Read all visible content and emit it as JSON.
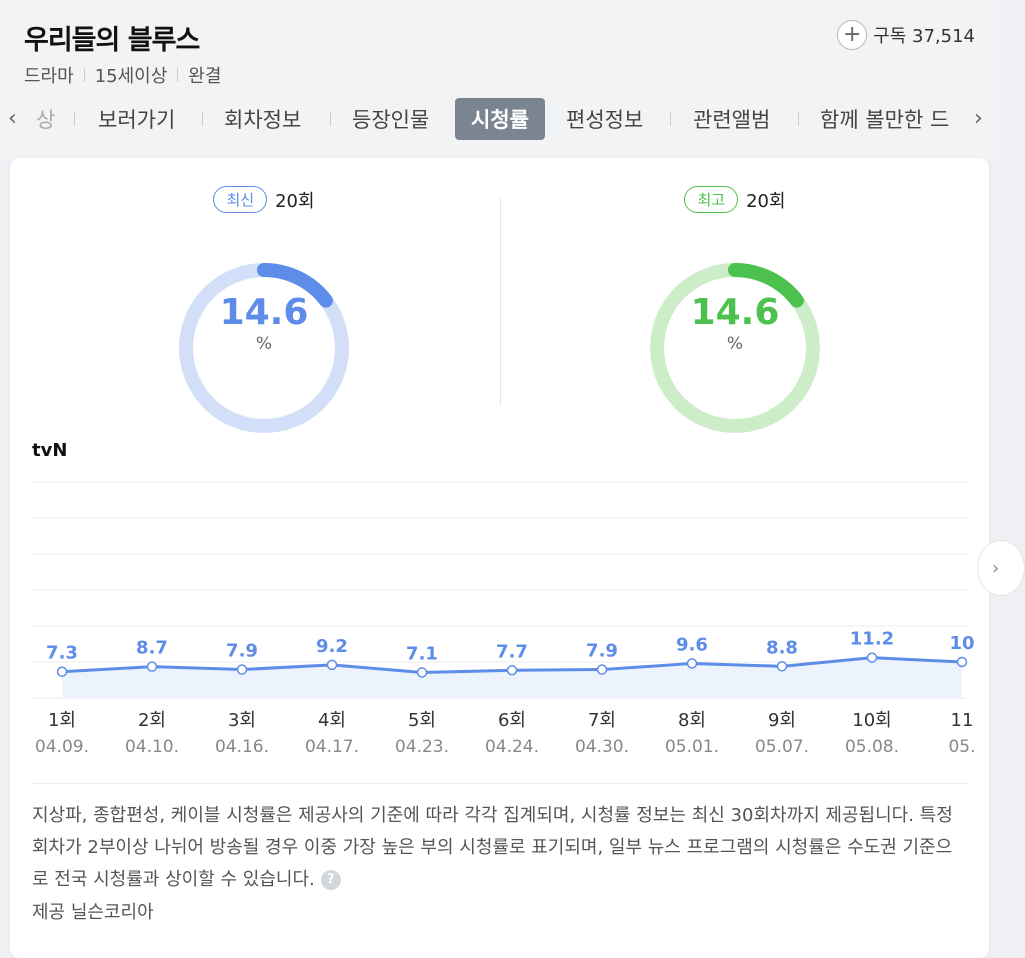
{
  "header": {
    "title": "우리들의 블루스",
    "meta": [
      "드라마",
      "15세이상",
      "완결"
    ],
    "subscribe_label": "구독 37,514"
  },
  "tabs": {
    "items": [
      "상",
      "보러가기",
      "회차정보",
      "등장인물",
      "시청률",
      "편성정보",
      "관련앨범",
      "함께 볼만한 드"
    ],
    "active_index": 4
  },
  "latest": {
    "badge": "최신",
    "episode": "20회",
    "value": "14.6",
    "unit": "%",
    "color": "#5d8de8",
    "track": "#d3def8"
  },
  "highest": {
    "badge": "최고",
    "episode": "20회",
    "value": "14.6",
    "unit": "%",
    "color": "#4cc14e",
    "track": "#cdedc9"
  },
  "network": "tvN",
  "chart_data": {
    "type": "area",
    "categories": [
      "1회",
      "2회",
      "3회",
      "4회",
      "5회",
      "6회",
      "7회",
      "8회",
      "9회",
      "10회",
      "11"
    ],
    "dates": [
      "04.09.",
      "04.10.",
      "04.16.",
      "04.17.",
      "04.23.",
      "04.24.",
      "04.30.",
      "05.01.",
      "05.07.",
      "05.08.",
      "05."
    ],
    "series": [
      {
        "values": [
          7.3,
          8.7,
          7.9,
          9.2,
          7.1,
          7.7,
          7.9,
          9.6,
          8.8,
          11.2,
          10
        ]
      }
    ],
    "value_labels": [
      "7.3",
      "8.7",
      "7.9",
      "9.2",
      "7.1",
      "7.7",
      "7.9",
      "9.6",
      "8.8",
      "11.2",
      "10"
    ],
    "ylim": [
      0,
      60
    ],
    "grid": true,
    "line_color": "#5d8de8",
    "fill_color": "#edf3fd"
  },
  "notice": "지상파, 종합편성, 케이블 시청률은 제공사의 기준에 따라 각각 집계되며, 시청률 정보는 최신 30회차까지 제공됩니다. 특정 회차가 2부이상 나뉘어 방송될 경우 이중 가장 높은 부의 시청률로 표기되며, 일부 뉴스 프로그램의 시청률은 수도권 기준으로 전국 시청률과 상이할 수 있습니다.",
  "help_icon": "?",
  "provider": "제공 닐슨코리아"
}
